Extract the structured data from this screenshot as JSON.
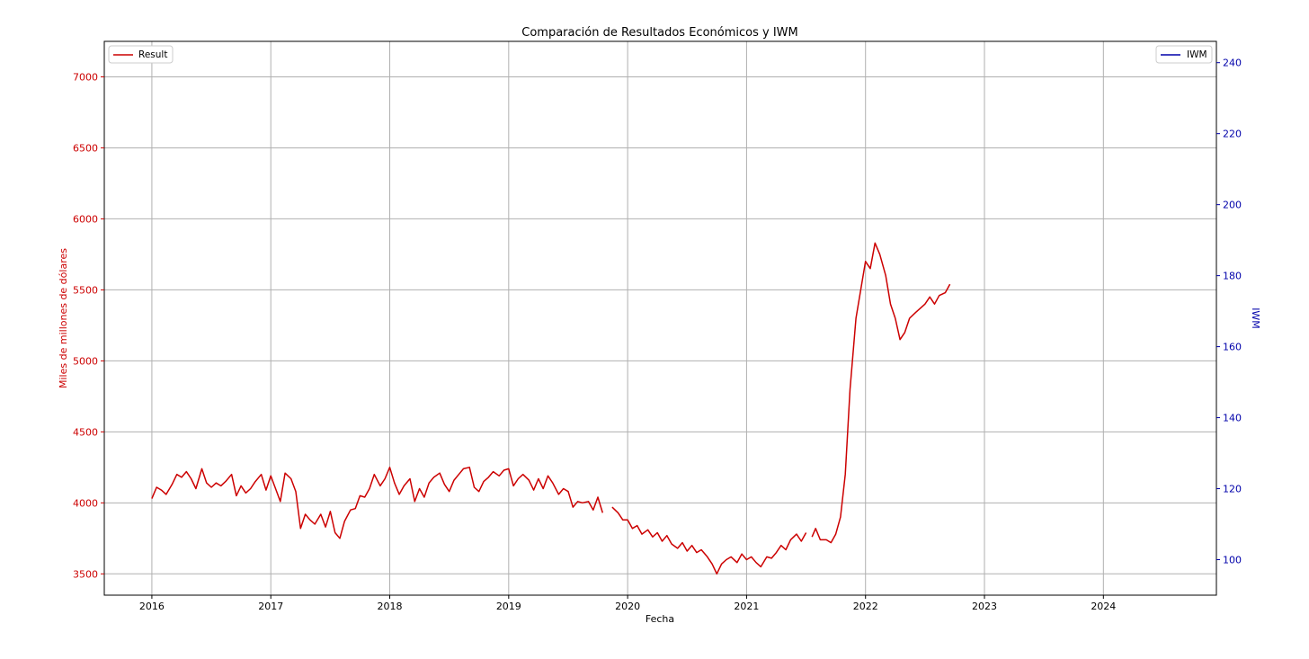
{
  "chart_data": {
    "type": "line",
    "title": "Comparación de Resultados Económicos y IWM",
    "xlabel": "Fecha",
    "ylabel_left": "Miles de millones de dólares",
    "ylabel_right": "IWM",
    "x_tick_labels": [
      "2016",
      "2017",
      "2018",
      "2019",
      "2020",
      "2021",
      "2022",
      "2023",
      "2024"
    ],
    "x_range": [
      2015.6,
      2024.95
    ],
    "ylim_left": [
      3350,
      7250
    ],
    "yticks_left": [
      3500,
      4000,
      4500,
      5000,
      5500,
      6000,
      6500,
      7000
    ],
    "ylim_right": [
      90,
      246
    ],
    "yticks_right": [
      100,
      120,
      140,
      160,
      180,
      200,
      220,
      240
    ],
    "grid": true,
    "left_axis_color": "#cc0000",
    "right_axis_color": "#0000aa",
    "series": [
      {
        "name": "Result",
        "axis": "left",
        "color": "#cc0000",
        "legend_position": "top-left",
        "segments": [
          [
            [
              2016.0,
              4030
            ],
            [
              2016.04,
              4110
            ],
            [
              2016.08,
              4090
            ],
            [
              2016.12,
              4060
            ],
            [
              2016.17,
              4130
            ],
            [
              2016.21,
              4200
            ],
            [
              2016.25,
              4180
            ],
            [
              2016.29,
              4220
            ],
            [
              2016.33,
              4170
            ],
            [
              2016.37,
              4100
            ],
            [
              2016.42,
              4240
            ],
            [
              2016.46,
              4140
            ],
            [
              2016.5,
              4110
            ],
            [
              2016.54,
              4140
            ],
            [
              2016.58,
              4120
            ],
            [
              2016.62,
              4150
            ],
            [
              2016.67,
              4200
            ],
            [
              2016.71,
              4050
            ],
            [
              2016.75,
              4120
            ],
            [
              2016.79,
              4070
            ],
            [
              2016.83,
              4100
            ],
            [
              2016.87,
              4150
            ],
            [
              2016.92,
              4200
            ],
            [
              2016.96,
              4090
            ],
            [
              2017.0,
              4190
            ],
            [
              2017.04,
              4100
            ],
            [
              2017.08,
              4010
            ],
            [
              2017.12,
              4210
            ],
            [
              2017.17,
              4170
            ],
            [
              2017.21,
              4080
            ],
            [
              2017.25,
              3820
            ],
            [
              2017.29,
              3920
            ],
            [
              2017.33,
              3880
            ],
            [
              2017.37,
              3850
            ],
            [
              2017.42,
              3920
            ],
            [
              2017.46,
              3830
            ],
            [
              2017.5,
              3940
            ],
            [
              2017.54,
              3790
            ],
            [
              2017.58,
              3750
            ],
            [
              2017.62,
              3870
            ],
            [
              2017.67,
              3950
            ],
            [
              2017.71,
              3960
            ],
            [
              2017.75,
              4050
            ],
            [
              2017.79,
              4040
            ],
            [
              2017.83,
              4100
            ],
            [
              2017.87,
              4200
            ],
            [
              2017.92,
              4120
            ],
            [
              2017.96,
              4170
            ],
            [
              2018.0,
              4250
            ],
            [
              2018.04,
              4140
            ],
            [
              2018.08,
              4060
            ],
            [
              2018.12,
              4120
            ],
            [
              2018.17,
              4170
            ],
            [
              2018.21,
              4010
            ],
            [
              2018.25,
              4100
            ],
            [
              2018.29,
              4040
            ],
            [
              2018.33,
              4140
            ],
            [
              2018.37,
              4180
            ],
            [
              2018.42,
              4210
            ],
            [
              2018.46,
              4130
            ],
            [
              2018.5,
              4080
            ],
            [
              2018.54,
              4160
            ],
            [
              2018.58,
              4200
            ],
            [
              2018.62,
              4240
            ],
            [
              2018.67,
              4250
            ],
            [
              2018.71,
              4110
            ],
            [
              2018.75,
              4080
            ],
            [
              2018.79,
              4150
            ],
            [
              2018.83,
              4180
            ],
            [
              2018.87,
              4220
            ],
            [
              2018.92,
              4190
            ],
            [
              2018.96,
              4230
            ],
            [
              2019.0,
              4240
            ],
            [
              2019.04,
              4120
            ],
            [
              2019.08,
              4170
            ],
            [
              2019.12,
              4200
            ],
            [
              2019.17,
              4160
            ],
            [
              2019.21,
              4090
            ],
            [
              2019.25,
              4170
            ],
            [
              2019.29,
              4100
            ],
            [
              2019.33,
              4190
            ],
            [
              2019.37,
              4140
            ],
            [
              2019.42,
              4060
            ],
            [
              2019.46,
              4100
            ],
            [
              2019.5,
              4080
            ],
            [
              2019.54,
              3970
            ],
            [
              2019.58,
              4010
            ],
            [
              2019.62,
              4000
            ],
            [
              2019.67,
              4010
            ],
            [
              2019.71,
              3950
            ],
            [
              2019.75,
              4040
            ],
            [
              2019.79,
              3930
            ]
          ],
          [
            [
              2019.87,
              3970
            ],
            [
              2019.92,
              3930
            ],
            [
              2019.96,
              3880
            ],
            [
              2020.0,
              3880
            ],
            [
              2020.04,
              3820
            ],
            [
              2020.08,
              3840
            ],
            [
              2020.12,
              3780
            ],
            [
              2020.17,
              3810
            ],
            [
              2020.21,
              3760
            ],
            [
              2020.25,
              3790
            ],
            [
              2020.29,
              3730
            ],
            [
              2020.33,
              3770
            ],
            [
              2020.37,
              3710
            ],
            [
              2020.42,
              3680
            ],
            [
              2020.46,
              3720
            ],
            [
              2020.5,
              3660
            ],
            [
              2020.54,
              3700
            ],
            [
              2020.58,
              3650
            ],
            [
              2020.62,
              3670
            ],
            [
              2020.67,
              3620
            ],
            [
              2020.71,
              3570
            ],
            [
              2020.75,
              3500
            ],
            [
              2020.79,
              3570
            ],
            [
              2020.83,
              3600
            ],
            [
              2020.87,
              3620
            ],
            [
              2020.92,
              3580
            ],
            [
              2020.96,
              3640
            ],
            [
              2021.0,
              3600
            ],
            [
              2021.04,
              3620
            ],
            [
              2021.08,
              3580
            ],
            [
              2021.12,
              3550
            ],
            [
              2021.17,
              3620
            ],
            [
              2021.21,
              3610
            ],
            [
              2021.25,
              3650
            ],
            [
              2021.29,
              3700
            ],
            [
              2021.33,
              3670
            ],
            [
              2021.37,
              3740
            ],
            [
              2021.42,
              3780
            ],
            [
              2021.46,
              3730
            ],
            [
              2021.5,
              3790
            ]
          ],
          [
            [
              2021.55,
              3760
            ],
            [
              2021.58,
              3820
            ],
            [
              2021.62,
              3740
            ],
            [
              2021.67,
              3740
            ],
            [
              2021.71,
              3720
            ],
            [
              2021.75,
              3780
            ],
            [
              2021.79,
              3900
            ],
            [
              2021.83,
              4200
            ],
            [
              2021.87,
              4800
            ],
            [
              2021.92,
              5300
            ],
            [
              2021.96,
              5500
            ],
            [
              2022.0,
              5700
            ],
            [
              2022.04,
              5650
            ],
            [
              2022.08,
              5830
            ],
            [
              2022.12,
              5750
            ],
            [
              2022.17,
              5600
            ],
            [
              2022.21,
              5400
            ],
            [
              2022.25,
              5300
            ],
            [
              2022.29,
              5150
            ],
            [
              2022.33,
              5200
            ],
            [
              2022.37,
              5300
            ],
            [
              2022.42,
              5340
            ],
            [
              2022.46,
              5370
            ],
            [
              2022.5,
              5400
            ],
            [
              2022.54,
              5450
            ],
            [
              2022.58,
              5400
            ],
            [
              2022.62,
              5460
            ],
            [
              2022.67,
              5480
            ],
            [
              2022.71,
              5540
            ]
          ]
        ]
      },
      {
        "name": "IWM",
        "axis": "right",
        "color": "#0000aa",
        "legend_position": "top-right"
      }
    ]
  }
}
